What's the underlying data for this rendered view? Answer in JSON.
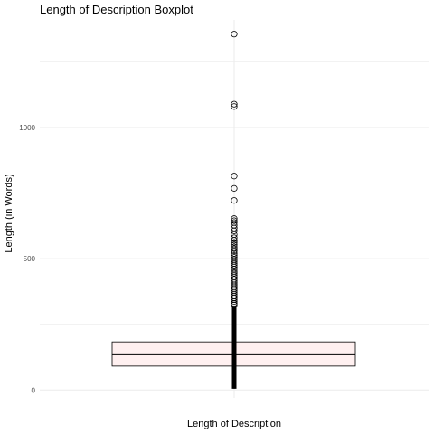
{
  "chart_data": {
    "type": "boxplot",
    "title": "Length of Description Boxplot",
    "xlabel": "Length of Description",
    "ylabel": "Length (in Words)",
    "ylim": [
      -30,
      1410
    ],
    "yticks": [
      0,
      500,
      1000
    ],
    "ytick_labels": [
      "0",
      "500",
      "1000"
    ],
    "minor_grid": [
      250,
      750,
      1250
    ],
    "grid": true,
    "box": {
      "q1": 91,
      "median": 136,
      "q3": 183,
      "whisker_low": 5,
      "whisker_high": 320,
      "fill": "#fff0f0",
      "stroke": "#000000"
    },
    "outliers": [
      1356,
      1089,
      1080,
      815,
      768,
      722,
      653,
      645,
      638,
      628,
      617,
      606,
      592,
      580,
      570,
      562,
      553,
      545,
      538,
      530,
      520,
      512,
      505,
      497,
      490,
      482,
      475,
      468,
      460,
      452,
      445,
      437,
      430,
      422,
      415,
      408,
      400,
      393,
      386,
      379,
      372,
      365,
      358,
      351,
      344,
      337,
      330,
      324
    ],
    "colors": {
      "grid": "#ebebeb",
      "outlier_stroke": "#000000"
    }
  }
}
